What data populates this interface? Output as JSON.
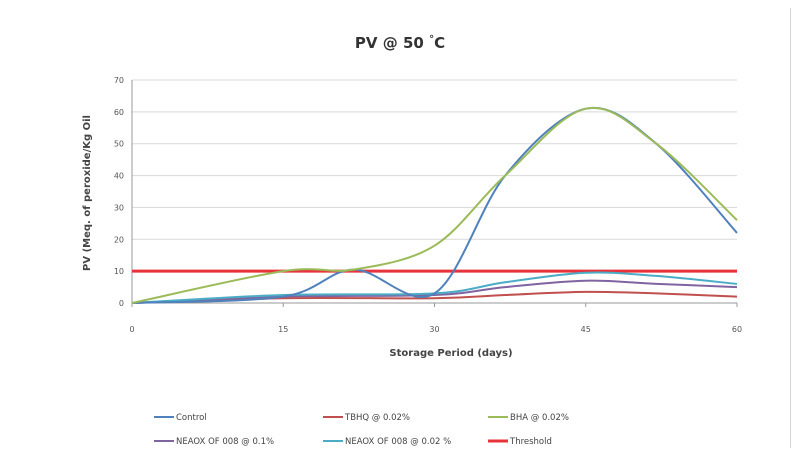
{
  "chart_data": {
    "type": "line",
    "title": "PV @ 50 °C",
    "xlabel": "Storage Period (days)",
    "ylabel": "PV (Meq. of peroxide/Kg Oil",
    "xlim": [
      0,
      60
    ],
    "ylim": [
      0,
      70
    ],
    "x_ticks": [
      0,
      15,
      30,
      45,
      60
    ],
    "y_ticks": [
      0,
      10,
      20,
      30,
      40,
      50,
      60,
      70
    ],
    "grid": "horizontal",
    "legend_position": "bottom",
    "x": [
      0,
      15,
      30,
      45,
      60
    ],
    "series": [
      {
        "name": "Control",
        "color": "#4f81bd",
        "values": [
          0,
          2,
          3,
          61,
          22
        ]
      },
      {
        "name": "TBHQ @ 0.02%",
        "color": "#c0504d",
        "values": [
          0,
          1.5,
          1.5,
          3.5,
          2
        ]
      },
      {
        "name": "BHA @ 0.02%",
        "color": "#9bbb59",
        "values": [
          0,
          10,
          18,
          61,
          26
        ]
      },
      {
        "name": "NEAOX OF 008 @ 0.1%",
        "color": "#8064a2",
        "values": [
          0,
          2,
          2.5,
          7,
          5
        ]
      },
      {
        "name": "NEAOX OF 008 @ 0.02 %",
        "color": "#4bacc6",
        "values": [
          0,
          2.5,
          3,
          9.5,
          6
        ]
      },
      {
        "name": "Threshold",
        "color": "#e8323c",
        "values": [
          10,
          10,
          10,
          10,
          10
        ]
      }
    ],
    "curve_extra": {
      "Control": [
        [
          22,
          10.5
        ],
        [
          37,
          40
        ],
        [
          52,
          50
        ]
      ],
      "BHA @ 0.02%": [
        [
          22,
          10.5
        ],
        [
          37,
          40
        ],
        [
          52,
          50
        ]
      ],
      "NEAOX OF 008 @ 0.1%": [
        [
          37,
          5
        ],
        [
          52,
          6
        ]
      ],
      "NEAOX OF 008 @ 0.02 %": [
        [
          37,
          6.5
        ],
        [
          52,
          8.5
        ]
      ],
      "TBHQ @ 0.02%": [
        [
          37,
          2.5
        ],
        [
          52,
          3
        ]
      ]
    }
  }
}
